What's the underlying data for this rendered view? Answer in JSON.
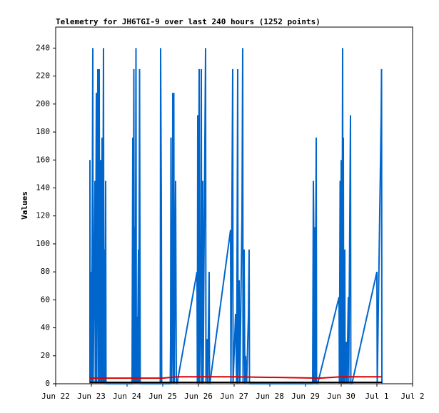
{
  "chart_data": {
    "type": "line",
    "title": "Telemetry for JH6TGI-9 over last 240 hours (1252 points)",
    "ylabel": "Values",
    "xlim": [
      0,
      10
    ],
    "xticks": [
      {
        "value": 0,
        "label": "Jun 22"
      },
      {
        "value": 1,
        "label": "Jun 23"
      },
      {
        "value": 2,
        "label": "Jun 24"
      },
      {
        "value": 3,
        "label": "Jun 25"
      },
      {
        "value": 4,
        "label": "Jun 26"
      },
      {
        "value": 5,
        "label": "Jun 27"
      },
      {
        "value": 6,
        "label": "Jun 28"
      },
      {
        "value": 7,
        "label": "Jun 29"
      },
      {
        "value": 8,
        "label": "Jun 30"
      },
      {
        "value": 9,
        "label": "Jul 1"
      },
      {
        "value": 10,
        "label": "Jul 2"
      }
    ],
    "ylim": [
      0,
      255
    ],
    "yticks": [
      0,
      20,
      40,
      60,
      80,
      100,
      120,
      140,
      160,
      180,
      200,
      220,
      240
    ],
    "series": [
      {
        "color": "#000000",
        "x": [
          0.96,
          9.14
        ],
        "values": [
          1,
          1
        ]
      },
      {
        "color": "#dd0000",
        "x": [
          0.96,
          3.0,
          3.4,
          5.0,
          7.4,
          8.0,
          9.14
        ],
        "values": [
          4,
          4,
          5,
          5,
          4,
          5,
          5
        ]
      },
      {
        "color": "#0066cc",
        "x": [
          0.96,
          0.96,
          0.97,
          1.0,
          1.01,
          1.04,
          1.05,
          1.1,
          1.11,
          1.14,
          1.15,
          1.18,
          1.2,
          1.22,
          1.23,
          1.26,
          1.27,
          1.3,
          1.31,
          1.34,
          1.35,
          1.37,
          1.38,
          1.4,
          1.41,
          2.14,
          2.16,
          2.17,
          2.19,
          2.2,
          2.22,
          2.23,
          2.25,
          2.26,
          2.28,
          2.29,
          2.32,
          2.33,
          2.35,
          2.36,
          2.37,
          2.93,
          2.94,
          2.96,
          2.97,
          3.21,
          3.22,
          3.23,
          3.24,
          3.27,
          3.28,
          3.29,
          3.31,
          3.32,
          3.36,
          3.38,
          3.4,
          3.96,
          3.97,
          3.98,
          3.99,
          4.02,
          4.03,
          4.06,
          4.08,
          4.09,
          4.12,
          4.13,
          4.2,
          4.21,
          4.24,
          4.26,
          4.3,
          4.31,
          4.32,
          4.9,
          4.91,
          4.96,
          4.97,
          5.04,
          5.07,
          5.1,
          5.11,
          5.14,
          5.16,
          5.2,
          5.22,
          5.24,
          5.25,
          5.28,
          5.3,
          5.32,
          5.35,
          5.4,
          5.42,
          5.43,
          7.2,
          7.22,
          7.23,
          7.24,
          7.26,
          7.27,
          7.3,
          7.31,
          7.34,
          7.94,
          7.95,
          7.97,
          7.98,
          8.0,
          8.01,
          8.02,
          8.04,
          8.05,
          8.06,
          8.07,
          8.1,
          8.11,
          8.14,
          8.16,
          8.2,
          8.21,
          8.26,
          8.27,
          8.3,
          9.0,
          9.01,
          9.12,
          9.13,
          9.14
        ],
        "values": [
          0,
          160,
          0,
          80,
          0,
          240,
          0,
          145,
          0,
          208,
          0,
          225,
          0,
          225,
          0,
          160,
          0,
          176,
          0,
          240,
          0,
          96,
          0,
          145,
          0,
          0,
          176,
          0,
          225,
          0,
          112,
          0,
          240,
          0,
          48,
          0,
          96,
          0,
          225,
          112,
          0,
          0,
          240,
          128,
          0,
          0,
          32,
          176,
          0,
          64,
          208,
          0,
          208,
          0,
          145,
          0,
          0,
          80,
          0,
          192,
          0,
          225,
          0,
          48,
          225,
          0,
          145,
          0,
          240,
          0,
          32,
          0,
          80,
          0,
          0,
          110,
          0,
          225,
          0,
          50,
          0,
          225,
          0,
          74,
          0,
          80,
          120,
          240,
          0,
          96,
          0,
          20,
          0,
          48,
          96,
          0,
          0,
          145,
          112,
          0,
          112,
          0,
          176,
          0,
          0,
          62,
          0,
          145,
          0,
          160,
          112,
          0,
          240,
          0,
          176,
          0,
          96,
          0,
          30,
          0,
          62,
          0,
          192,
          0,
          0,
          80,
          0,
          192,
          225,
          0
        ]
      }
    ]
  }
}
